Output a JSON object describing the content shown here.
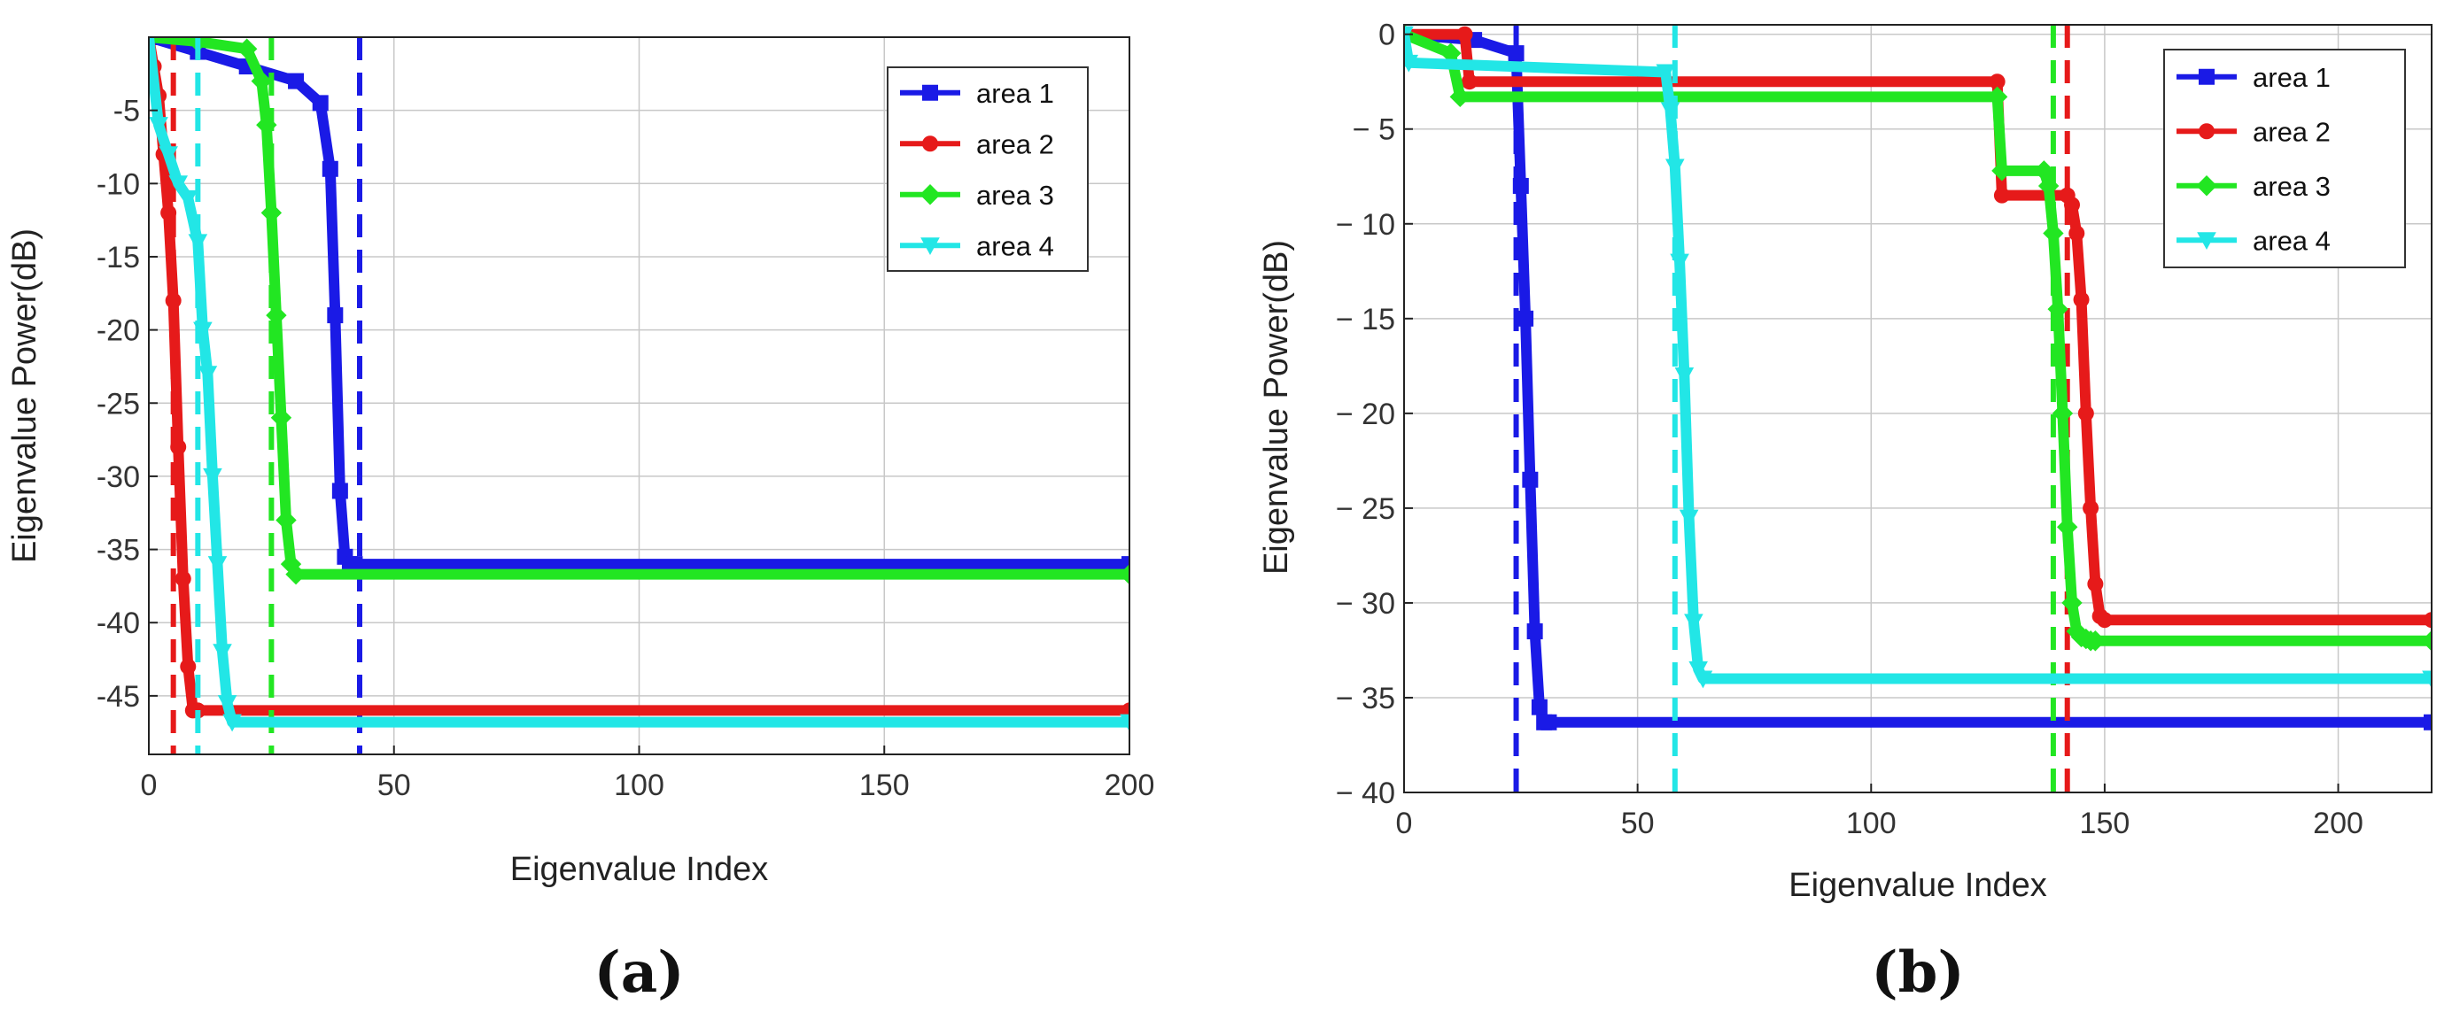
{
  "chart_data": [
    {
      "type": "line",
      "panel_label": "(a)",
      "xlabel": "Eigenvalue Index",
      "ylabel": "Eigenvalue Power(dB)",
      "xlim": [
        0,
        200
      ],
      "ylim": [
        -49,
        0
      ],
      "x_ticks": [
        0,
        50,
        100,
        150,
        200
      ],
      "y_ticks": [
        -5,
        -10,
        -15,
        -20,
        -25,
        -30,
        -35,
        -40,
        -45
      ],
      "grid": true,
      "legend_position": "top-right",
      "series": [
        {
          "name": "area 1",
          "color": "#1a1ae6",
          "marker": "square",
          "x": [
            0,
            10,
            20,
            30,
            35,
            37,
            38,
            39,
            40,
            41,
            42,
            200
          ],
          "y": [
            0,
            -1,
            -2,
            -3,
            -4.5,
            -9,
            -19,
            -31,
            -35.5,
            -36,
            -36,
            -36
          ],
          "threshold": 43
        },
        {
          "name": "area 2",
          "color": "#e61a1a",
          "marker": "circle",
          "x": [
            0,
            1,
            2,
            3,
            4,
            5,
            6,
            7,
            8,
            9,
            10,
            200
          ],
          "y": [
            0,
            -2,
            -4,
            -8,
            -12,
            -18,
            -28,
            -37,
            -43,
            -46,
            -46,
            -46
          ],
          "threshold": 5
        },
        {
          "name": "area 3",
          "color": "#22e622",
          "marker": "diamond",
          "x": [
            0,
            10,
            20,
            23,
            24,
            25,
            26,
            27,
            28,
            29,
            30,
            200
          ],
          "y": [
            0,
            -0.3,
            -0.8,
            -3,
            -6,
            -12,
            -19,
            -26,
            -33,
            -36,
            -36.7,
            -36.7
          ],
          "threshold": 25
        },
        {
          "name": "area 4",
          "color": "#22e6e6",
          "marker": "triangle-down",
          "x": [
            0,
            2,
            4,
            6,
            8,
            10,
            11,
            12,
            13,
            14,
            15,
            16,
            17,
            200
          ],
          "y": [
            0,
            -6,
            -8,
            -10,
            -11,
            -14,
            -20,
            -23,
            -30,
            -36,
            -42,
            -45.5,
            -46.8,
            -46.8
          ],
          "threshold": 10
        }
      ]
    },
    {
      "type": "line",
      "panel_label": "(b)",
      "xlabel": "Eigenvalue Index",
      "ylabel": "Eigenvalue Power(dB)",
      "xlim": [
        0,
        220
      ],
      "ylim": [
        -40,
        0.5
      ],
      "x_ticks": [
        0,
        50,
        100,
        150,
        200
      ],
      "y_ticks": [
        0,
        -5,
        -10,
        -15,
        -20,
        -25,
        -30,
        -35,
        -40
      ],
      "y_tick_labels": [
        "0",
        "− 5",
        "− 10",
        "− 15",
        "− 20",
        "− 25",
        "− 30",
        "− 35",
        "− 40"
      ],
      "grid": true,
      "legend_position": "top-right",
      "series": [
        {
          "name": "area 1",
          "color": "#1a1ae6",
          "marker": "square",
          "x": [
            0,
            15,
            24,
            25,
            26,
            27,
            28,
            29,
            30,
            31,
            220
          ],
          "y": [
            0,
            -0.3,
            -1,
            -8,
            -15,
            -23.5,
            -31.5,
            -35.5,
            -36.3,
            -36.3,
            -36.3
          ],
          "threshold": 24
        },
        {
          "name": "area 2",
          "color": "#e61a1a",
          "marker": "circle",
          "x": [
            0,
            13,
            14,
            127,
            128,
            142,
            143,
            144,
            145,
            146,
            147,
            148,
            149,
            150,
            220
          ],
          "y": [
            0,
            0,
            -2.5,
            -2.5,
            -8.5,
            -8.5,
            -9,
            -10.5,
            -14,
            -20,
            -25,
            -29,
            -30.7,
            -30.9,
            -30.9
          ],
          "threshold": 142
        },
        {
          "name": "area 3",
          "color": "#22e622",
          "marker": "diamond",
          "x": [
            0,
            10,
            12,
            127,
            128,
            137,
            138,
            139,
            140,
            141,
            142,
            143,
            144,
            145,
            146,
            147,
            148,
            220
          ],
          "y": [
            0,
            -1,
            -3.3,
            -3.3,
            -7.2,
            -7.2,
            -8,
            -10.5,
            -14.5,
            -20,
            -26,
            -30,
            -31.5,
            -31.8,
            -31.9,
            -32,
            -32,
            -32
          ],
          "threshold": 139
        },
        {
          "name": "area 4",
          "color": "#22e6e6",
          "marker": "triangle-down",
          "x": [
            0,
            1,
            56,
            57,
            58,
            59,
            60,
            61,
            62,
            63,
            64,
            220
          ],
          "y": [
            0,
            -1.5,
            -2,
            -4,
            -7,
            -12,
            -18,
            -25.5,
            -31,
            -33.5,
            -34,
            -34
          ],
          "threshold": 58
        }
      ]
    }
  ]
}
